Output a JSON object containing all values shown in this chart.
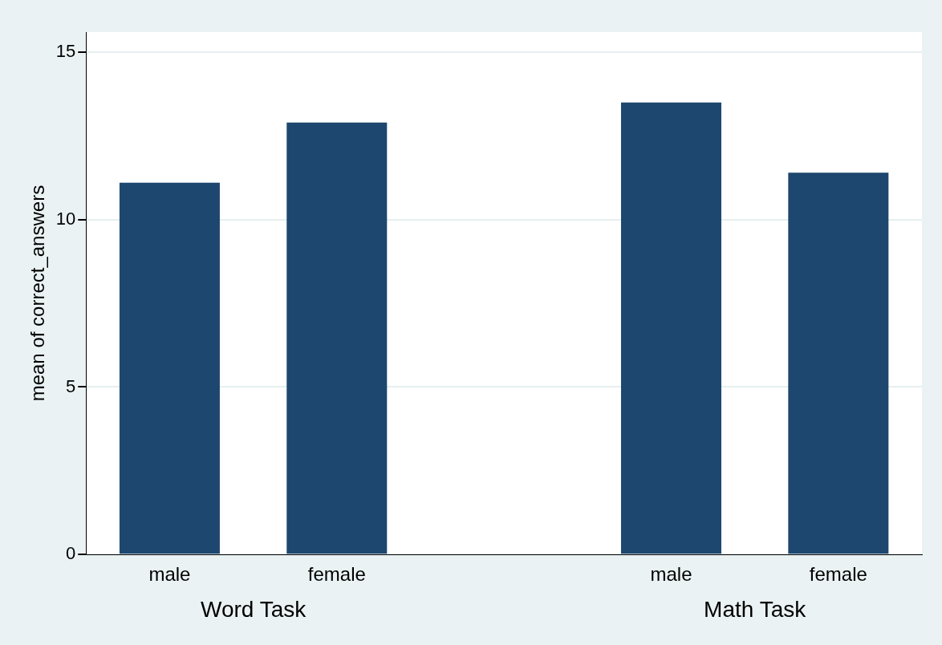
{
  "chart_data": {
    "type": "bar",
    "ylabel": "mean of correct_answers",
    "categories": [
      "male",
      "female",
      null,
      "male",
      "female"
    ],
    "values": [
      11.1,
      12.9,
      null,
      13.5,
      11.4
    ],
    "color": "#1d476e",
    "ylim": [
      0,
      15.6
    ],
    "yticks": [
      0,
      5,
      10,
      15
    ],
    "grid": "y",
    "annotations": [
      "Word Task",
      "Math Task"
    ]
  }
}
